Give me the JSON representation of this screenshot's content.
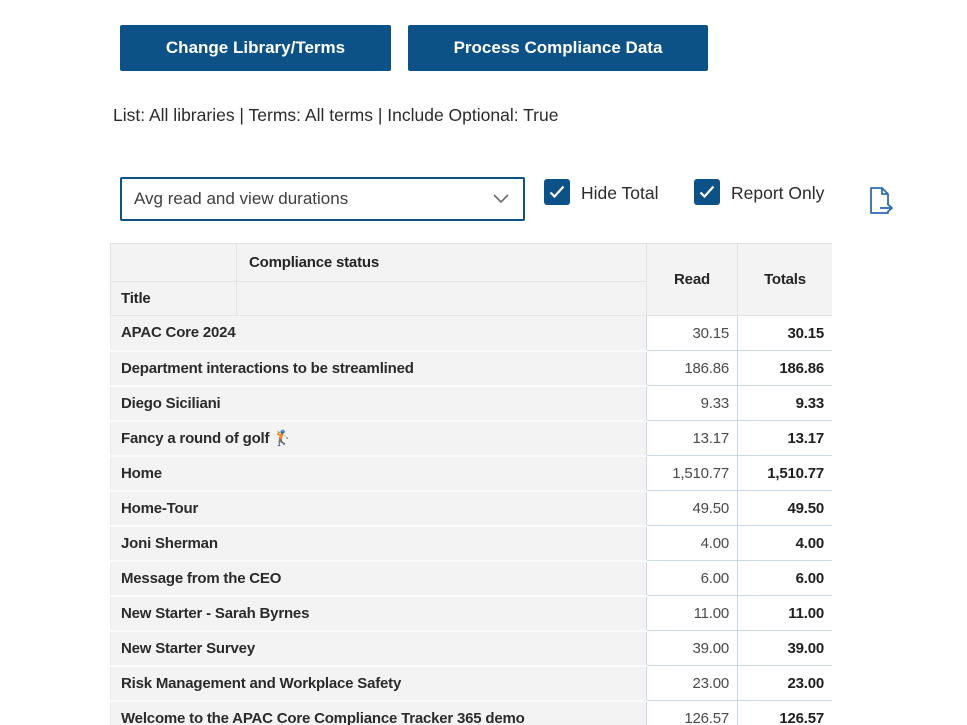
{
  "toolbar": {
    "change_library_label": "Change Library/Terms",
    "process_data_label": "Process Compliance Data"
  },
  "filters_summary": "List: All libraries | Terms: All terms | Include Optional: True",
  "controls": {
    "measure_dropdown_value": "Avg read and view durations",
    "hide_total_label": "Hide Total",
    "hide_total_checked": true,
    "report_only_label": "Report Only",
    "report_only_checked": true,
    "export_icon": "file-export-icon",
    "chevron_icon": "chevron-down-icon",
    "checkmark_icon": "checkmark-icon"
  },
  "colors": {
    "primary_blue": "#0d5287",
    "export_icon_blue": "#2b6cb8",
    "grid_line_blue": "#c9d9e8",
    "header_gray": "#f3f3f3"
  },
  "table": {
    "corner_header": "Compliance status",
    "row_header": "Title",
    "read_header": "Read",
    "totals_header": "Totals",
    "rows": [
      {
        "title": "APAC Core 2024",
        "read": "30.15",
        "totals": "30.15"
      },
      {
        "title": "Department interactions to be streamlined",
        "read": "186.86",
        "totals": "186.86"
      },
      {
        "title": "Diego Siciliani",
        "read": "9.33",
        "totals": "9.33"
      },
      {
        "title": "Fancy a round of golf 🏌",
        "read": "13.17",
        "totals": "13.17"
      },
      {
        "title": "Home",
        "read": "1,510.77",
        "totals": "1,510.77"
      },
      {
        "title": "Home-Tour",
        "read": "49.50",
        "totals": "49.50"
      },
      {
        "title": "Joni Sherman",
        "read": "4.00",
        "totals": "4.00"
      },
      {
        "title": "Message from the CEO",
        "read": "6.00",
        "totals": "6.00"
      },
      {
        "title": "New Starter - Sarah Byrnes",
        "read": "11.00",
        "totals": "11.00"
      },
      {
        "title": "New Starter Survey",
        "read": "39.00",
        "totals": "39.00"
      },
      {
        "title": "Risk Management and Workplace Safety",
        "read": "23.00",
        "totals": "23.00"
      },
      {
        "title": "Welcome to the APAC Core Compliance Tracker 365 demo",
        "read": "126.57",
        "totals": "126.57"
      }
    ]
  }
}
